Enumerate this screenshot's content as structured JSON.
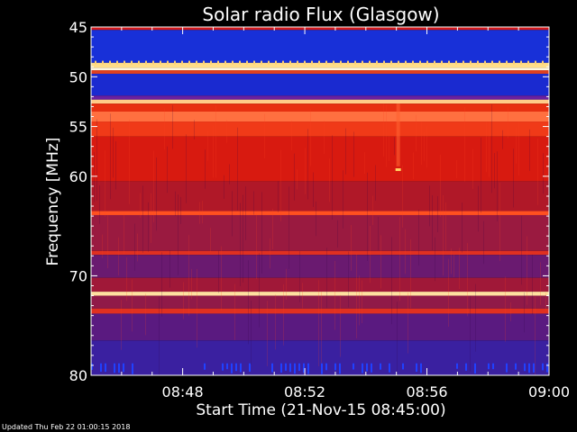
{
  "chart_data": {
    "type": "heatmap",
    "title": "Solar radio Flux (Glasgow)",
    "xlabel": "Start Time (21-Nov-15 08:45:00)",
    "ylabel": "Frequency [MHz]",
    "x_ticks": [
      "08:48",
      "08:52",
      "08:56",
      "09:00"
    ],
    "x_tick_minutes": [
      3,
      7,
      11,
      15
    ],
    "x_range_minutes": [
      0,
      15
    ],
    "y_ticks": [
      45,
      50,
      55,
      60,
      70,
      80
    ],
    "ylim": [
      45,
      80
    ],
    "footer": "Updated Thu Feb 22 01:00:15 2018",
    "colors": {
      "background": "#000000",
      "low": "#1a1aa8",
      "mid": "#cc1010",
      "high": "#ffffcc",
      "axis": "#ffffff"
    },
    "bands": [
      {
        "from": 45.0,
        "to": 45.3,
        "color": "#d01818"
      },
      {
        "from": 45.3,
        "to": 48.6,
        "color": "#1830d8"
      },
      {
        "from": 48.6,
        "to": 49.1,
        "color": "#ffdd88"
      },
      {
        "from": 49.1,
        "to": 49.35,
        "color": "#fff8e0"
      },
      {
        "from": 49.35,
        "to": 49.7,
        "color": "#e04020"
      },
      {
        "from": 49.7,
        "to": 51.9,
        "color": "#1a2ad0"
      },
      {
        "from": 51.9,
        "to": 52.3,
        "color": "#6a20a0"
      },
      {
        "from": 52.3,
        "to": 52.7,
        "color": "#ffcc88"
      },
      {
        "from": 52.7,
        "to": 53.5,
        "color": "#e83010"
      },
      {
        "from": 53.5,
        "to": 54.5,
        "color": "#ff7040"
      },
      {
        "from": 54.5,
        "to": 56.0,
        "color": "#f03a18"
      },
      {
        "from": 56.0,
        "to": 60.5,
        "color": "#d81a10"
      },
      {
        "from": 60.5,
        "to": 63.5,
        "color": "#b01828"
      },
      {
        "from": 63.5,
        "to": 63.9,
        "color": "#ff5020"
      },
      {
        "from": 63.9,
        "to": 67.5,
        "color": "#9a1a40"
      },
      {
        "from": 67.5,
        "to": 67.9,
        "color": "#e03020"
      },
      {
        "from": 67.9,
        "to": 70.2,
        "color": "#6a1a70"
      },
      {
        "from": 70.2,
        "to": 71.6,
        "color": "#a01838"
      },
      {
        "from": 71.6,
        "to": 72.0,
        "color": "#ffe0a0"
      },
      {
        "from": 72.0,
        "to": 73.3,
        "color": "#901a48"
      },
      {
        "from": 73.3,
        "to": 73.8,
        "color": "#e03020"
      },
      {
        "from": 73.8,
        "to": 76.5,
        "color": "#5a1a80"
      },
      {
        "from": 76.5,
        "to": 80.0,
        "color": "#3a20a0"
      }
    ]
  }
}
